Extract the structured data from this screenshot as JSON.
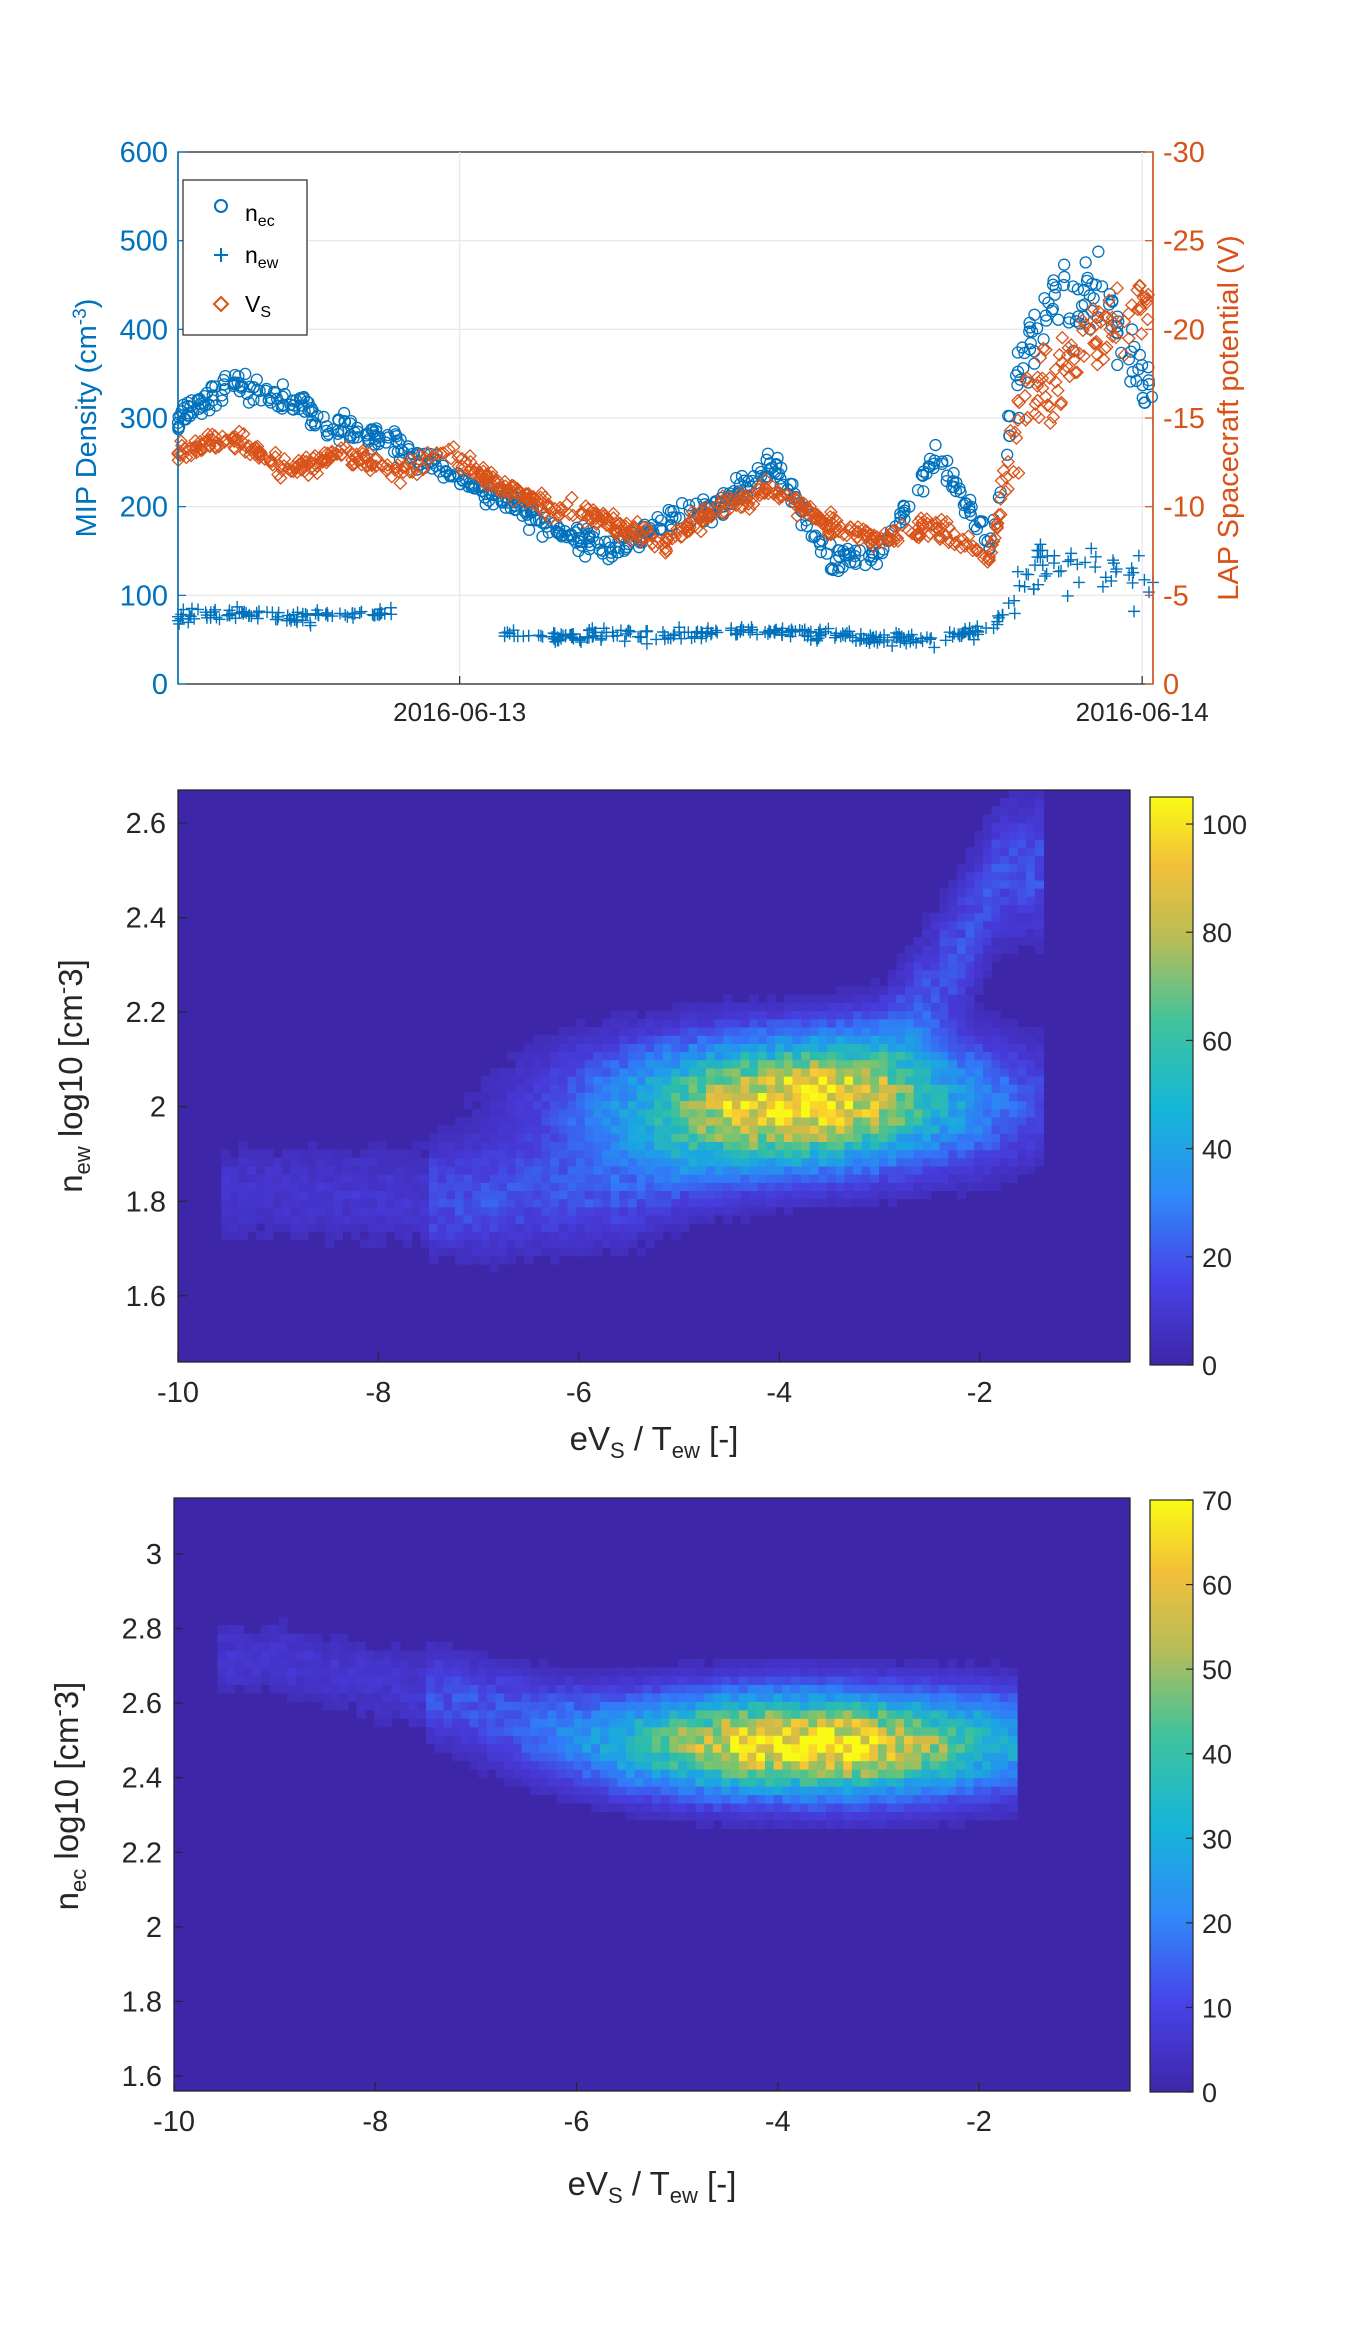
{
  "chart_data": [
    {
      "type": "scatter",
      "x_ticks": [
        "2016-06-13",
        "2016-06-14"
      ],
      "y_left": {
        "label": "MIP Density (cm^-3)",
        "ylim": [
          0,
          600
        ],
        "ticks": [
          "0",
          "100",
          "200",
          "300",
          "400",
          "500",
          "600"
        ],
        "color": "#0072BD"
      },
      "y_right": {
        "label": "LAP Spacecraft potential (V)",
        "ylim": [
          0,
          -30
        ],
        "ticks": [
          "0",
          "-5",
          "-10",
          "-15",
          "-20",
          "-25",
          "-30"
        ],
        "color": "#D95319"
      },
      "x_range_days": [
        0.0,
        0.9
      ],
      "legend_position": "top-left",
      "grid": true,
      "series": [
        {
          "name": "n_ec",
          "label_main": "n",
          "label_sub": "ec",
          "marker": "circle",
          "color": "#0072BD",
          "axis": "left",
          "x": [
            0.0,
            0.05,
            0.1,
            0.15,
            0.2,
            0.25,
            0.3,
            0.35,
            0.4,
            0.45,
            0.5,
            0.55,
            0.6,
            0.65,
            0.7,
            0.75,
            0.78,
            0.8,
            0.85,
            0.9
          ],
          "y": [
            300,
            340,
            320,
            290,
            270,
            235,
            210,
            170,
            150,
            185,
            200,
            250,
            140,
            150,
            260,
            160,
            360,
            420,
            440,
            320
          ]
        },
        {
          "name": "n_ew",
          "label_main": "n",
          "label_sub": "ew",
          "marker": "plus",
          "color": "#0072BD",
          "axis": "left",
          "x": [
            0.0,
            0.05,
            0.1,
            0.15,
            0.2,
            0.25,
            0.3,
            0.35,
            0.4,
            0.45,
            0.5,
            0.55,
            0.6,
            0.65,
            0.7,
            0.75,
            0.78,
            0.8,
            0.85,
            0.9
          ],
          "y": [
            75,
            80,
            75,
            78,
            80,
            null,
            60,
            55,
            55,
            55,
            58,
            60,
            55,
            50,
            50,
            60,
            110,
            130,
            125,
            110
          ]
        },
        {
          "name": "V_S",
          "label_main": "V",
          "label_sub": "S",
          "marker": "diamond",
          "color": "#D95319",
          "axis": "right",
          "x": [
            0.0,
            0.05,
            0.1,
            0.15,
            0.2,
            0.25,
            0.3,
            0.35,
            0.4,
            0.45,
            0.5,
            0.55,
            0.6,
            0.65,
            0.7,
            0.75,
            0.78,
            0.8,
            0.85,
            0.9
          ],
          "y": [
            -13,
            -14,
            -12,
            -13,
            -12,
            -13,
            -11,
            -10,
            -9,
            -8,
            -10,
            -11,
            -9,
            -8,
            -9,
            -7,
            -16,
            -17,
            -20,
            -21
          ]
        }
      ]
    },
    {
      "type": "heatmap",
      "xlabel_main": "eV",
      "xlabel_sub": "S",
      "xlabel_tail": " / T",
      "xlabel_sub2": "ew",
      "xlabel_end": " [-]",
      "ylabel_main": "n",
      "ylabel_sub": "ew",
      "ylabel_tail": " log10 [cm",
      "ylabel_sup": "-",
      "ylabel_end": "3]",
      "xlim": [
        -10,
        -0.5
      ],
      "ylim": [
        1.46,
        2.67
      ],
      "x_ticks": [
        "-10",
        "-8",
        "-6",
        "-4",
        "-2"
      ],
      "x_tick_values": [
        -10,
        -8,
        -6,
        -4,
        -2
      ],
      "y_ticks": [
        "1.6",
        "1.8",
        "2",
        "2.2",
        "2.4",
        "2.6"
      ],
      "y_tick_values": [
        1.6,
        1.8,
        2.0,
        2.2,
        2.4,
        2.6
      ],
      "colorbar": {
        "range": [
          0,
          105
        ],
        "ticks": [
          "0",
          "20",
          "40",
          "60",
          "80",
          "100"
        ],
        "tick_values": [
          0,
          20,
          40,
          60,
          80,
          100
        ]
      },
      "density_ridge": [
        [
          -9,
          1.82
        ],
        [
          -7,
          1.8
        ],
        [
          -5.5,
          1.84
        ],
        [
          -4,
          1.98
        ],
        [
          -3,
          2.08
        ],
        [
          -2.2,
          2.34
        ],
        [
          -1.8,
          2.5
        ]
      ],
      "peak": {
        "x": -3.8,
        "y": 2.01,
        "count": 105
      }
    },
    {
      "type": "heatmap",
      "xlabel_main": "eV",
      "xlabel_sub": "S",
      "xlabel_tail": " / T",
      "xlabel_sub2": "ew",
      "xlabel_end": " [-]",
      "ylabel_main": "n",
      "ylabel_sub": "ec",
      "ylabel_tail": " log10 [cm",
      "ylabel_sup": "-",
      "ylabel_end": "3]",
      "xlim": [
        -10,
        -0.5
      ],
      "ylim": [
        1.56,
        3.15
      ],
      "x_ticks": [
        "-10",
        "-8",
        "-6",
        "-4",
        "-2"
      ],
      "x_tick_values": [
        -10,
        -8,
        -6,
        -4,
        -2
      ],
      "y_ticks": [
        "1.6",
        "1.8",
        "2",
        "2.2",
        "2.4",
        "2.6",
        "2.8",
        "3"
      ],
      "y_tick_values": [
        1.6,
        1.8,
        2.0,
        2.2,
        2.4,
        2.6,
        2.8,
        3.0
      ],
      "colorbar": {
        "range": [
          0,
          70
        ],
        "ticks": [
          "0",
          "10",
          "20",
          "30",
          "40",
          "50",
          "60",
          "70"
        ],
        "tick_values": [
          0,
          10,
          20,
          30,
          40,
          50,
          60,
          70
        ]
      },
      "density_ridge": [
        [
          -9,
          2.72
        ],
        [
          -7,
          2.6
        ],
        [
          -5.5,
          2.5
        ],
        [
          -4,
          2.5
        ],
        [
          -3,
          2.48
        ],
        [
          -2,
          2.5
        ]
      ],
      "peak": {
        "x": -3.7,
        "y": 2.49,
        "count": 70
      }
    }
  ]
}
